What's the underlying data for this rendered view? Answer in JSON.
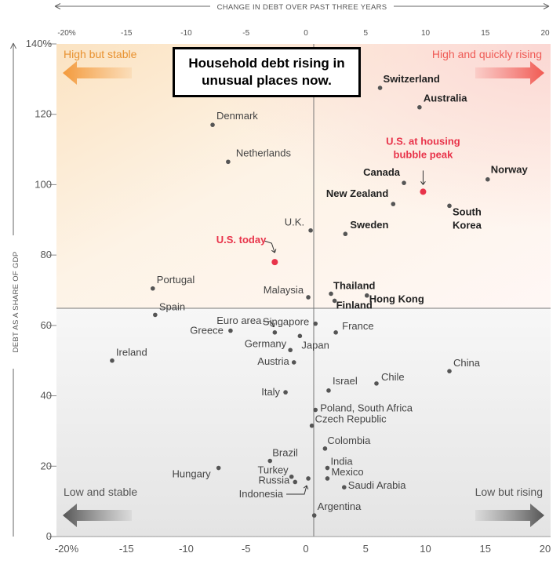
{
  "chart_data": {
    "type": "scatter",
    "xlabel": "CHANGE IN DEBT OVER PAST THREE YEARS",
    "ylabel": "DEBT AS A SHARE OF GDP",
    "xlim": [
      -20,
      20
    ],
    "ylim": [
      0,
      140
    ],
    "x_ticks": [
      "-20%",
      "-15",
      "-10",
      "-5",
      "0",
      "5",
      "10",
      "15",
      "20"
    ],
    "y_ticks": [
      "0",
      "20",
      "40",
      "60",
      "80",
      "100",
      "120",
      "140%"
    ],
    "callout": "Household debt rising in unusual places now.",
    "quadrants": {
      "top_left": "High but stable",
      "top_right": "High and quickly rising",
      "bottom_left": "Low and stable",
      "bottom_right": "Low but rising"
    },
    "highlight_color": "#e8334a",
    "points": [
      {
        "label": "Switzerland",
        "x": 6.2,
        "y": 127.5,
        "style": "bold"
      },
      {
        "label": "Australia",
        "x": 9.5,
        "y": 122,
        "style": "bold"
      },
      {
        "label": "Denmark",
        "x": -7.8,
        "y": 117,
        "style": "normal"
      },
      {
        "label": "Netherlands",
        "x": -6.5,
        "y": 106.5,
        "style": "normal"
      },
      {
        "label": "U.S. at housing bubble peak",
        "label_lines": [
          "U.S. at housing",
          "bubble peak"
        ],
        "x": 9.8,
        "y": 98,
        "style": "red"
      },
      {
        "label": "Canada",
        "x": 8.2,
        "y": 100.5,
        "style": "bold"
      },
      {
        "label": "Norway",
        "x": 15.2,
        "y": 101.5,
        "style": "bold"
      },
      {
        "label": "New Zealand",
        "x": 7.3,
        "y": 94.5,
        "style": "bold"
      },
      {
        "label": "South Korea",
        "label_lines": [
          "South",
          "Korea"
        ],
        "x": 12,
        "y": 94,
        "style": "bold"
      },
      {
        "label": "U.K.",
        "x": 0.4,
        "y": 87,
        "style": "normal"
      },
      {
        "label": "Sweden",
        "x": 3.3,
        "y": 86,
        "style": "bold"
      },
      {
        "label": "U.S. today",
        "x": -2.6,
        "y": 78,
        "style": "red"
      },
      {
        "label": "Portugal",
        "x": -12.8,
        "y": 70.5,
        "style": "normal"
      },
      {
        "label": "Malaysia",
        "x": 0.2,
        "y": 68,
        "style": "normal"
      },
      {
        "label": "Thailand",
        "x": 2.1,
        "y": 69,
        "style": "bold"
      },
      {
        "label": "Hong Kong",
        "x": 5.1,
        "y": 68.5,
        "style": "bold"
      },
      {
        "label": "Finland",
        "x": 2.4,
        "y": 67,
        "style": "bold"
      },
      {
        "label": "Spain",
        "x": -12.6,
        "y": 63,
        "style": "normal"
      },
      {
        "label": "Euro area",
        "x": -2.6,
        "y": 58,
        "style": "normal"
      },
      {
        "label": "Singapore",
        "x": 0.8,
        "y": 60.5,
        "style": "normal"
      },
      {
        "label": "France",
        "x": 2.5,
        "y": 58,
        "style": "normal"
      },
      {
        "label": "Greece",
        "x": -6.3,
        "y": 58.5,
        "style": "normal"
      },
      {
        "label": "Japan",
        "x": -0.5,
        "y": 57,
        "style": "normal"
      },
      {
        "label": "Germany",
        "x": -1.3,
        "y": 53,
        "style": "normal"
      },
      {
        "label": "Ireland",
        "x": -16.2,
        "y": 50,
        "style": "normal"
      },
      {
        "label": "Austria",
        "x": -1,
        "y": 49.5,
        "style": "normal"
      },
      {
        "label": "China",
        "x": 12,
        "y": 47,
        "style": "normal"
      },
      {
        "label": "Chile",
        "x": 5.9,
        "y": 43.5,
        "style": "normal"
      },
      {
        "label": "Israel",
        "x": 1.9,
        "y": 41.5,
        "style": "normal"
      },
      {
        "label": "Italy",
        "x": -1.7,
        "y": 41,
        "style": "normal"
      },
      {
        "label": "Poland, South Africa",
        "x": 0.8,
        "y": 36,
        "style": "normal"
      },
      {
        "label": "Czech Republic",
        "x": 0.5,
        "y": 31.5,
        "style": "normal"
      },
      {
        "label": "Colombia",
        "x": 1.6,
        "y": 25,
        "style": "normal"
      },
      {
        "label": "Brazil",
        "x": -3,
        "y": 21.5,
        "style": "normal"
      },
      {
        "label": "Hungary",
        "x": -7.3,
        "y": 19.5,
        "style": "normal"
      },
      {
        "label": "India",
        "x": 1.8,
        "y": 19.5,
        "style": "normal"
      },
      {
        "label": "Turkey",
        "x": -1.2,
        "y": 17,
        "style": "normal"
      },
      {
        "label": "Mexico",
        "x": 1.8,
        "y": 16.5,
        "style": "normal"
      },
      {
        "label": "Russia",
        "x": -0.9,
        "y": 15.5,
        "style": "normal"
      },
      {
        "label": "Indonesia",
        "x": 0.2,
        "y": 16.5,
        "style": "normal"
      },
      {
        "label": "Saudi Arabia",
        "x": 3.2,
        "y": 14,
        "style": "normal"
      },
      {
        "label": "Argentina",
        "x": 0.7,
        "y": 6,
        "style": "normal"
      }
    ]
  }
}
